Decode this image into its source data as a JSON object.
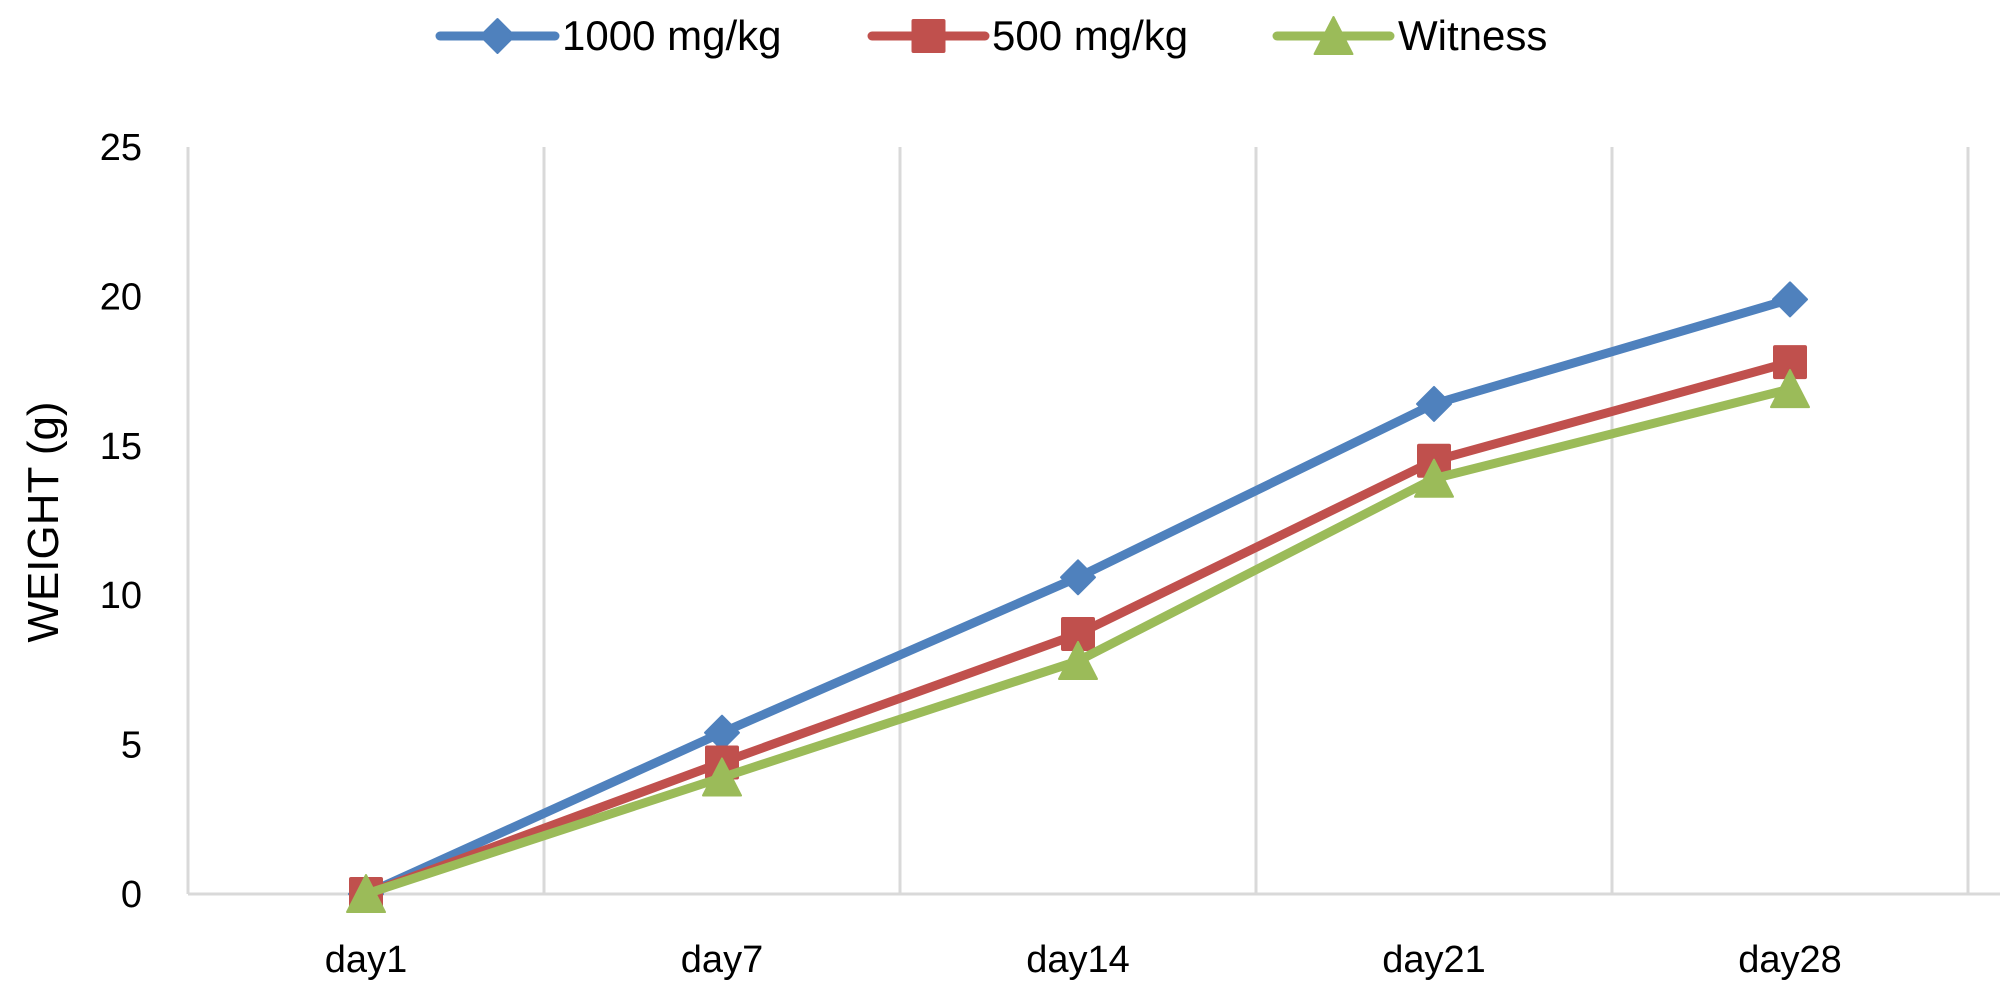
{
  "chart_data": {
    "type": "line",
    "title": "",
    "xlabel": "",
    "ylabel": "WEIGHT (g)",
    "categories": [
      "day1",
      "day7",
      "day14",
      "day21",
      "day28"
    ],
    "ylim": [
      0,
      25
    ],
    "yticks": [
      0,
      5,
      10,
      15,
      20,
      25
    ],
    "ytick_labels": [
      "0",
      "5",
      "10",
      "15",
      "20",
      "25"
    ],
    "grid": "vertical",
    "legend_position": "top",
    "series": [
      {
        "name": "1000 mg/kg",
        "marker": "diamond",
        "color": "#4F81BD",
        "values": [
          0,
          5.4,
          10.6,
          16.4,
          19.9
        ]
      },
      {
        "name": "500 mg/kg",
        "marker": "square",
        "color": "#C0504D",
        "values": [
          0,
          4.4,
          8.7,
          14.5,
          17.8
        ]
      },
      {
        "name": "Witness",
        "marker": "triangle",
        "color": "#9BBB59",
        "values": [
          0,
          3.9,
          7.8,
          13.9,
          16.9
        ]
      }
    ]
  }
}
